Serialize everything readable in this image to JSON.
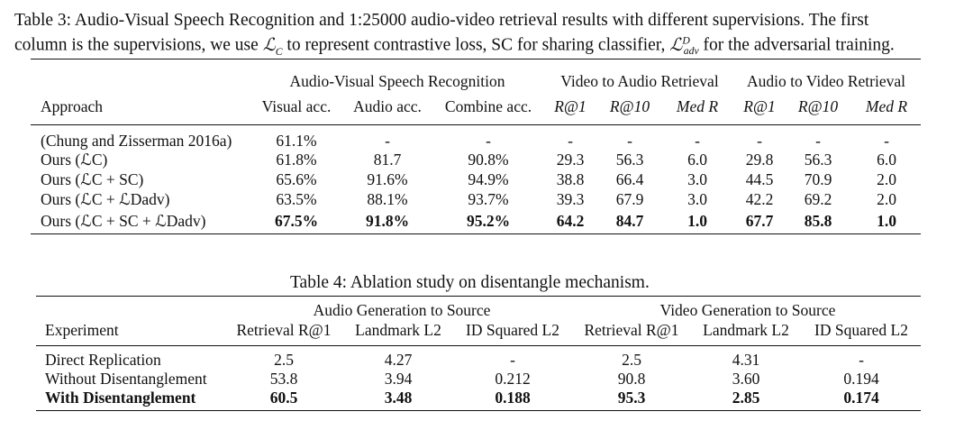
{
  "table3": {
    "caption_label": "Table 3:",
    "caption_part1": "Audio-Visual Speech Recognition and 1:25000 audio-video retrieval results with different supervisions. The first",
    "caption_part2a": "column is the supervisions, we use",
    "caption_part2b": "to represent contrastive loss, SC for sharing classifier,",
    "caption_part2c": "for the adversarial training.",
    "group_headers": [
      "Audio-Visual Speech Recognition",
      "Video to Audio Retrieval",
      "Audio to Video Retrieval"
    ],
    "col_headers": [
      "Approach",
      "Visual acc.",
      "Audio acc.",
      "Combine acc.",
      "R@1",
      "R@10",
      "Med R",
      "R@1",
      "R@10",
      "Med R"
    ],
    "rows": [
      {
        "label": "(Chung and Zisserman 2016a)",
        "values": [
          "61.1%",
          "-",
          "-",
          "-",
          "-",
          "-",
          "-",
          "-",
          "-"
        ]
      },
      {
        "label": "Ours (ℒC)",
        "values": [
          "61.8%",
          "81.7",
          "90.8%",
          "29.3",
          "56.3",
          "6.0",
          "29.8",
          "56.3",
          "6.0"
        ]
      },
      {
        "label": "Ours (ℒC + SC)",
        "values": [
          "65.6%",
          "91.6%",
          "94.9%",
          "38.8",
          "66.4",
          "3.0",
          "44.5",
          "70.9",
          "2.0"
        ]
      },
      {
        "label": "Ours (ℒC + ℒDadv)",
        "values": [
          "63.5%",
          "88.1%",
          "93.7%",
          "39.3",
          "67.9",
          "3.0",
          "42.2",
          "69.2",
          "2.0"
        ]
      },
      {
        "label": "Ours (ℒC + SC + ℒDadv)",
        "values": [
          "67.5%",
          "91.8%",
          "95.2%",
          "64.2",
          "84.7",
          "1.0",
          "67.7",
          "85.8",
          "1.0"
        ]
      }
    ]
  },
  "table4": {
    "caption": "Table 4: Ablation study on disentangle mechanism.",
    "group_headers": [
      "Audio Generation to Source",
      "Video Generation to Source"
    ],
    "col_headers": [
      "Experiment",
      "Retrieval R@1",
      "Landmark L2",
      "ID Squared L2",
      "Retrieval R@1",
      "Landmark L2",
      "ID Squared L2"
    ],
    "rows": [
      {
        "label": "Direct Replication",
        "values": [
          "2.5",
          "4.27",
          "-",
          "2.5",
          "4.31",
          "-"
        ]
      },
      {
        "label": "Without Disentanglement",
        "values": [
          "53.8",
          "3.94",
          "0.212",
          "90.8",
          "3.60",
          "0.194"
        ]
      },
      {
        "label": "With Disentanglement",
        "values": [
          "60.5",
          "3.48",
          "0.188",
          "95.3",
          "2.85",
          "0.174"
        ]
      }
    ]
  }
}
